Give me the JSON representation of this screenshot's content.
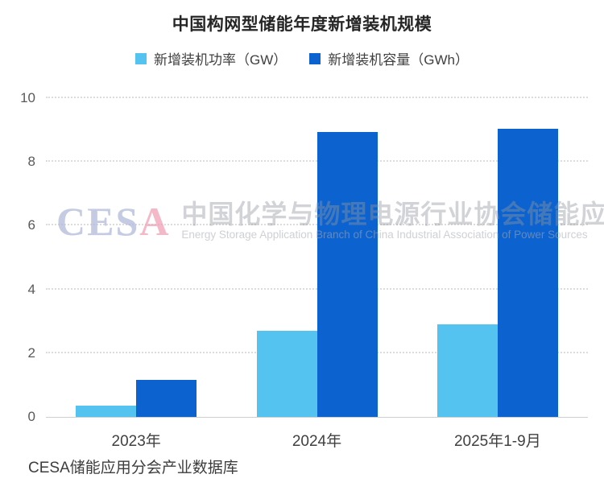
{
  "title": "中国构网型储能年度新增装机规模",
  "legend": [
    {
      "label": "新增装机功率（GW）",
      "color": "#55C3F0"
    },
    {
      "label": "新增装机容量（GWh）",
      "color": "#0C62CF"
    }
  ],
  "chart_data": {
    "type": "bar",
    "title": "中国构网型储能年度新增装机规模",
    "categories": [
      "2023年",
      "2024年",
      "2025年1-9月"
    ],
    "series": [
      {
        "name": "新增装机功率（GW）",
        "color": "#55C3F0",
        "values": [
          0.35,
          2.7,
          2.9
        ]
      },
      {
        "name": "新增装机容量（GWh）",
        "color": "#0C62CF",
        "values": [
          1.15,
          8.95,
          9.05
        ]
      }
    ],
    "xlabel": "",
    "ylabel": "",
    "ylim": [
      0,
      10
    ],
    "yticks": [
      0,
      2,
      4,
      6,
      8,
      10
    ],
    "grid": "horizontal-dotted",
    "legend_position": "top"
  },
  "watermark": {
    "cesa_ces": "CES",
    "cesa_a": "A",
    "line1": "中国化学与物理电源行业协会储能应用分会",
    "line2": "Energy Storage Application Branch of China Industrial Association of Power Sources"
  },
  "footer": "CESA储能应用分会产业数据库"
}
